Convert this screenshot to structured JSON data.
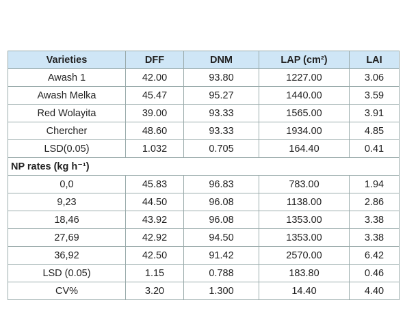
{
  "table": {
    "header": [
      "Varieties",
      "DFF",
      "DNM",
      "LAP (cm²)",
      "LAI"
    ],
    "rows": [
      [
        "Awash 1",
        "42.00",
        "93.80",
        "1227.00",
        "3.06"
      ],
      [
        "Awash Melka",
        "45.47",
        "95.27",
        "1440.00",
        "3.59"
      ],
      [
        "Red Wolayita",
        "39.00",
        "93.33",
        "1565.00",
        "3.91"
      ],
      [
        "Chercher",
        "48.60",
        "93.33",
        "1934.00",
        "4.85"
      ],
      [
        "LSD(0.05)",
        "1.032",
        "0.705",
        "164.40",
        "0.41"
      ]
    ],
    "section": "NP rates (kg h⁻¹)",
    "rows2": [
      [
        "0,0",
        "45.83",
        "96.83",
        "783.00",
        "1.94"
      ],
      [
        "9,23",
        "44.50",
        "96.08",
        "1138.00",
        "2.86"
      ],
      [
        "18,46",
        "43.92",
        "96.08",
        "1353.00",
        "3.38"
      ],
      [
        "27,69",
        "42.92",
        "94.50",
        "1353.00",
        "3.38"
      ],
      [
        "36,92",
        "42.50",
        "91.42",
        "2570.00",
        "6.42"
      ],
      [
        "LSD (0.05)",
        "1.15",
        "0.788",
        "183.80",
        "0.46"
      ],
      [
        "CV%",
        "3.20",
        "1.300",
        "14.40",
        "4.40"
      ]
    ]
  }
}
